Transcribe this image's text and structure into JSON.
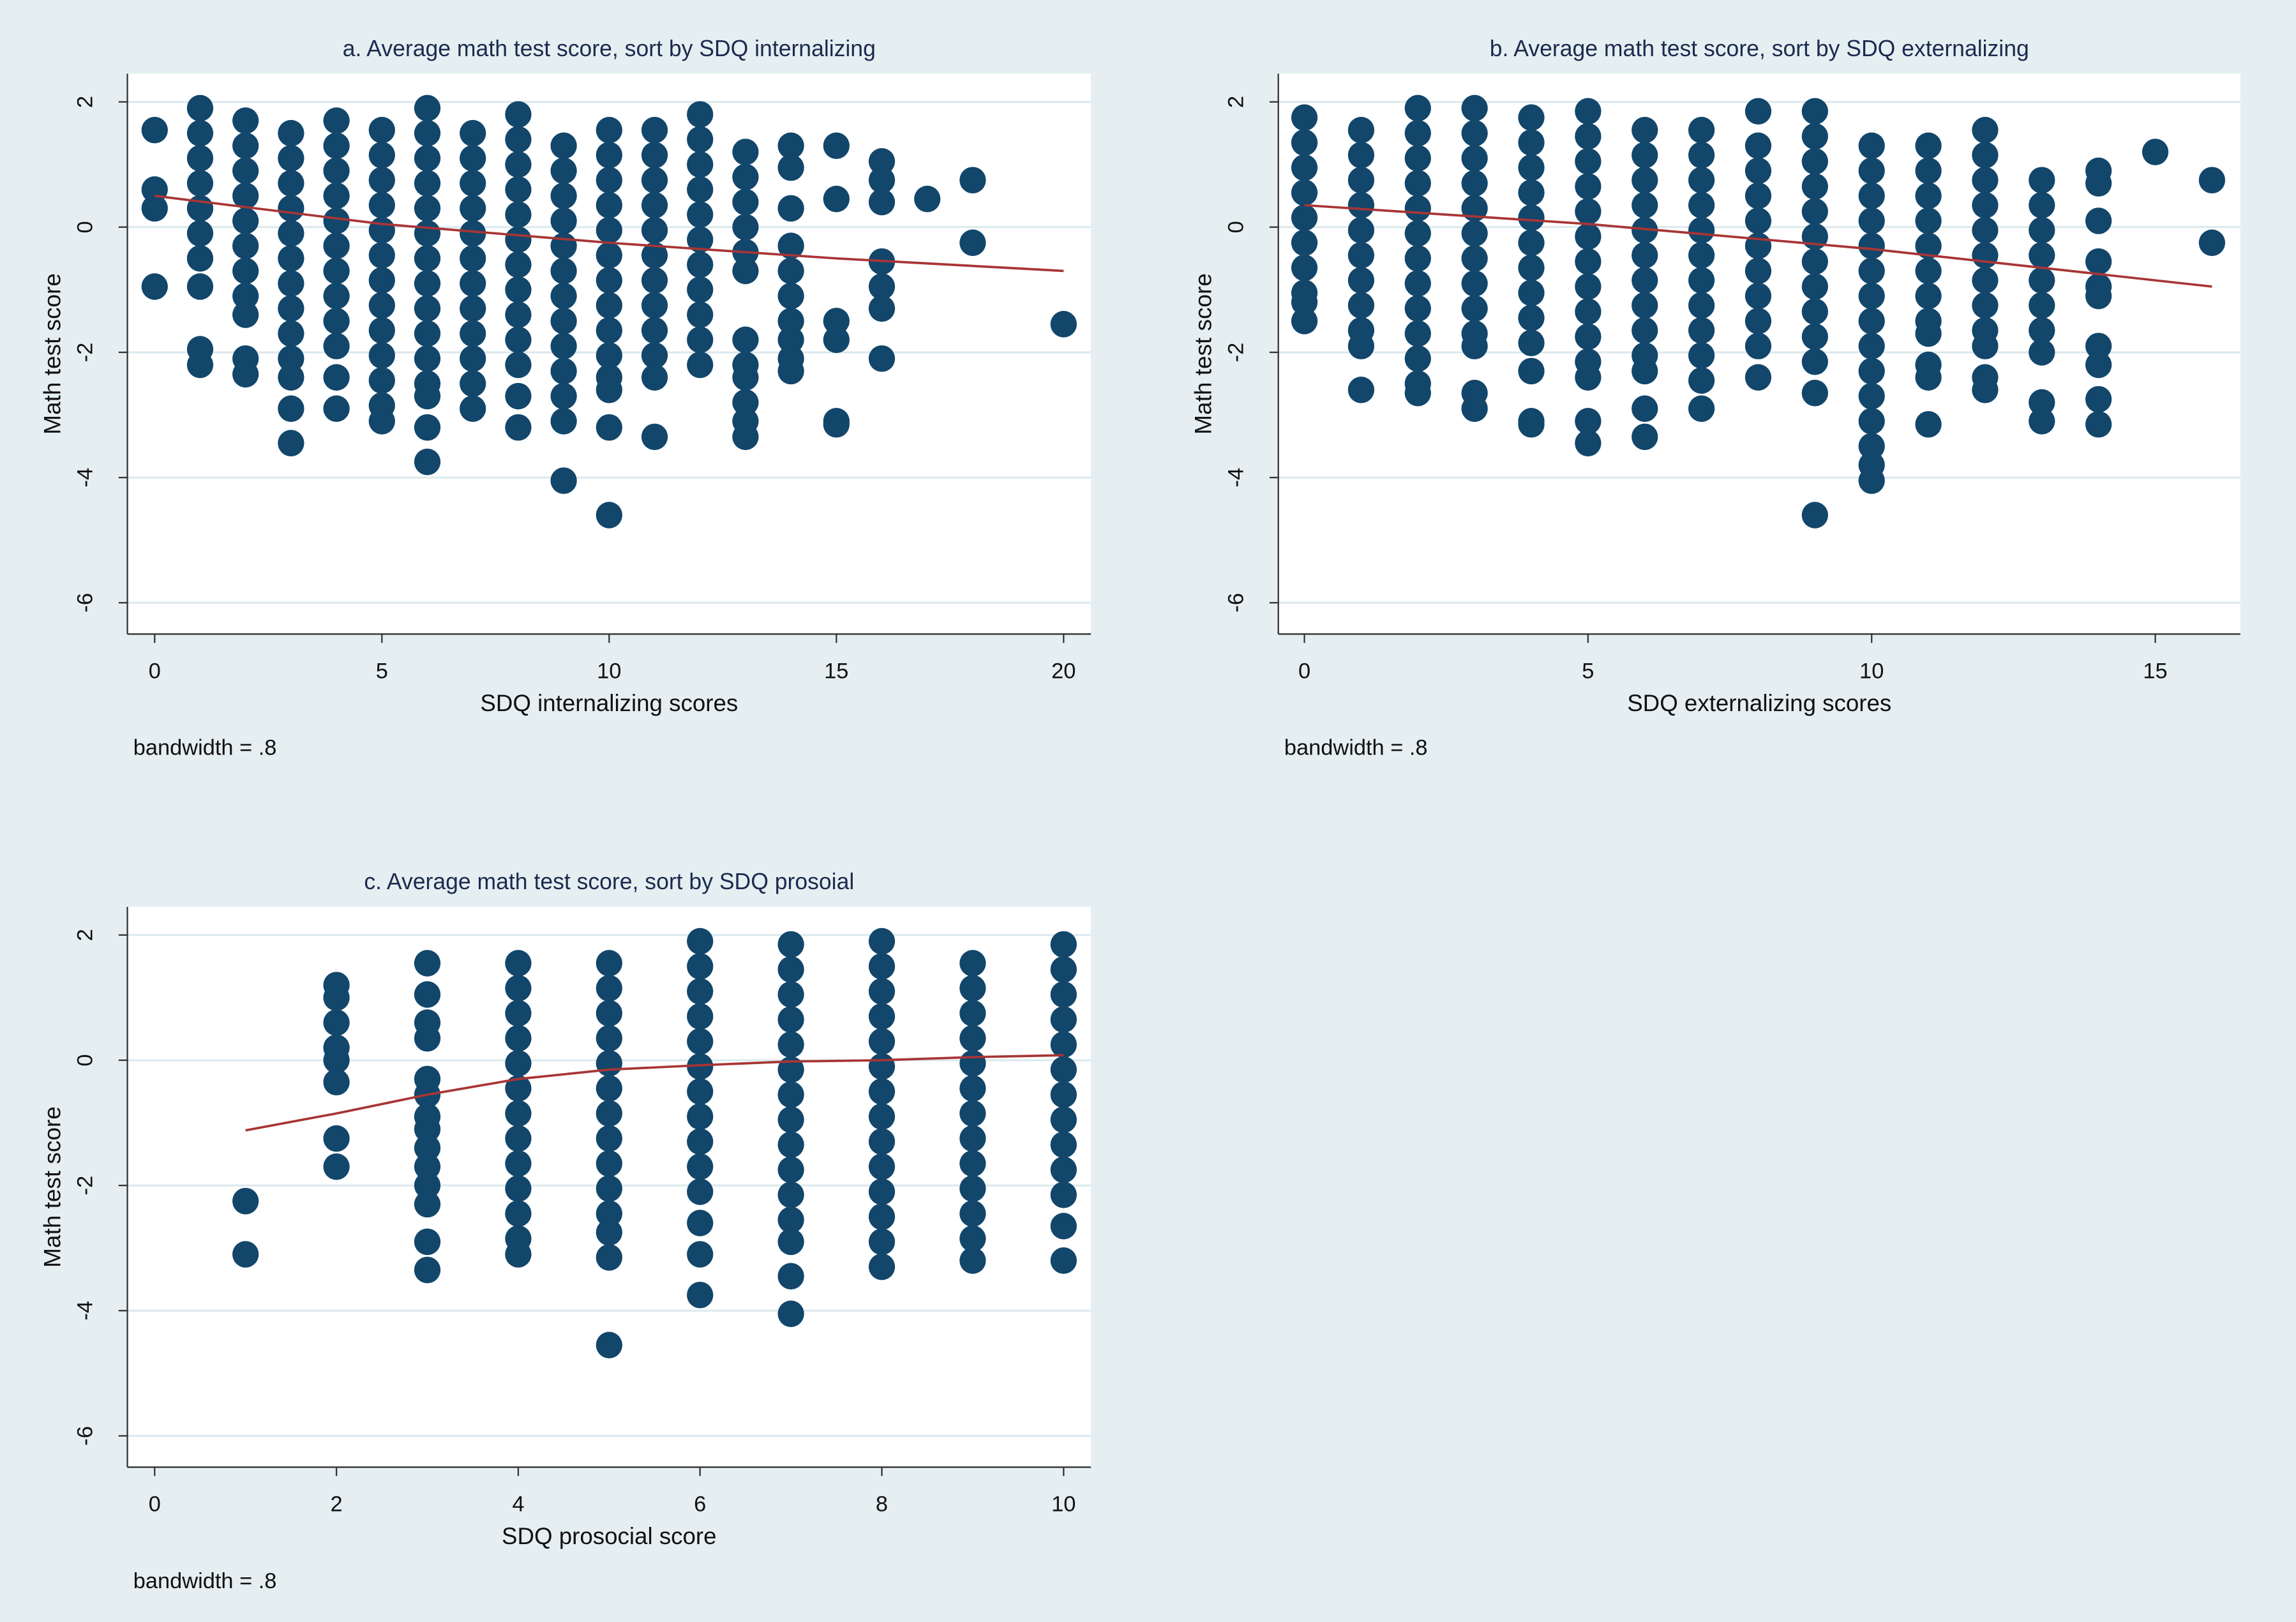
{
  "chart_data": [
    {
      "type": "scatter",
      "title": "a. Average math test score, sort by SDQ internalizing",
      "x_label": "SDQ internalizing scores",
      "y_label": "Math test score",
      "note": "bandwidth = .8",
      "color": "#12466b",
      "x": [
        0,
        0,
        0,
        0,
        1,
        1,
        1,
        1,
        1,
        1,
        1,
        1,
        1,
        1,
        2,
        2,
        2,
        2,
        2,
        2,
        2,
        2,
        2,
        2,
        2,
        3,
        3,
        3,
        3,
        3,
        3,
        3,
        3,
        3,
        3,
        3,
        3,
        3,
        4,
        4,
        4,
        4,
        4,
        4,
        4,
        4,
        4,
        4,
        4,
        4,
        5,
        5,
        5,
        5,
        5,
        5,
        5,
        5,
        5,
        5,
        5,
        5,
        5,
        6,
        6,
        6,
        6,
        6,
        6,
        6,
        6,
        6,
        6,
        6,
        6,
        6,
        6,
        6,
        7,
        7,
        7,
        7,
        7,
        7,
        7,
        7,
        7,
        7,
        7,
        7,
        8,
        8,
        8,
        8,
        8,
        8,
        8,
        8,
        8,
        8,
        8,
        8,
        8,
        9,
        9,
        9,
        9,
        9,
        9,
        9,
        9,
        9,
        9,
        9,
        9,
        9,
        10,
        10,
        10,
        10,
        10,
        10,
        10,
        10,
        10,
        10,
        10,
        10,
        10,
        10,
        11,
        11,
        11,
        11,
        11,
        11,
        11,
        11,
        11,
        11,
        11,
        11,
        12,
        12,
        12,
        12,
        12,
        12,
        12,
        12,
        12,
        12,
        12,
        13,
        13,
        13,
        13,
        13,
        13,
        13,
        13,
        13,
        13,
        13,
        13,
        14,
        14,
        14,
        14,
        14,
        14,
        14,
        14,
        14,
        14,
        15,
        15,
        15,
        15,
        15,
        15,
        16,
        16,
        16,
        16,
        16,
        16,
        16,
        17,
        18,
        18,
        20
      ],
      "values": [
        1.55,
        0.6,
        0.3,
        -0.95,
        1.9,
        1.5,
        1.1,
        0.7,
        0.3,
        -0.1,
        -0.5,
        -0.95,
        -1.95,
        -2.2,
        1.7,
        1.3,
        0.9,
        0.5,
        0.1,
        -0.3,
        -0.7,
        -1.1,
        -1.4,
        -2.1,
        -2.35,
        1.5,
        1.1,
        0.7,
        0.3,
        -0.1,
        -0.5,
        -0.9,
        -1.3,
        -1.7,
        -2.1,
        -2.4,
        -2.9,
        -3.45,
        1.7,
        1.3,
        0.9,
        0.5,
        0.1,
        -0.3,
        -0.7,
        -1.1,
        -1.5,
        -1.9,
        -2.4,
        -2.9,
        1.55,
        1.15,
        0.75,
        0.35,
        -0.05,
        -0.45,
        -0.85,
        -1.25,
        -1.65,
        -2.05,
        -2.45,
        -2.85,
        -3.1,
        1.9,
        1.5,
        1.1,
        0.7,
        0.3,
        -0.1,
        -0.5,
        -0.9,
        -1.3,
        -1.7,
        -2.1,
        -2.5,
        -2.7,
        -3.2,
        -3.75,
        1.5,
        1.1,
        0.7,
        0.3,
        -0.1,
        -0.5,
        -0.9,
        -1.3,
        -1.7,
        -2.1,
        -2.5,
        -2.9,
        1.8,
        1.4,
        1.0,
        0.6,
        0.2,
        -0.2,
        -0.6,
        -1.0,
        -1.4,
        -1.8,
        -2.2,
        -2.7,
        -3.2,
        1.3,
        0.9,
        0.5,
        0.1,
        -0.3,
        -0.7,
        -1.1,
        -1.5,
        -1.9,
        -2.3,
        -2.7,
        -3.1,
        -4.05,
        1.55,
        1.15,
        0.75,
        0.35,
        -0.05,
        -0.45,
        -0.85,
        -1.25,
        -1.65,
        -2.05,
        -2.4,
        -2.6,
        -3.2,
        -4.6,
        1.55,
        1.15,
        0.75,
        0.35,
        -0.05,
        -0.45,
        -0.85,
        -1.25,
        -1.65,
        -2.05,
        -2.4,
        -3.35,
        1.8,
        1.4,
        1.0,
        0.6,
        0.2,
        -0.2,
        -0.6,
        -1.0,
        -1.4,
        -1.8,
        -2.2,
        1.2,
        0.8,
        0.4,
        0,
        -0.4,
        -0.7,
        -1.8,
        -2.2,
        -2.4,
        -2.8,
        -3.1,
        -3.35,
        1.3,
        0.95,
        0.3,
        -0.3,
        -0.7,
        -1.1,
        -1.5,
        -1.8,
        -2.1,
        -2.3,
        1.3,
        0.45,
        -1.5,
        -1.8,
        -3.1,
        -3.15,
        1.05,
        0.75,
        0.4,
        -0.55,
        -0.95,
        -1.3,
        -2.1,
        0.45,
        0.75,
        -0.25,
        -1.55
      ],
      "lowess": {
        "color": "#a83535",
        "x": [
          0,
          5,
          10,
          15,
          20
        ],
        "values": [
          0.5,
          0.05,
          -0.25,
          -0.5,
          -0.7
        ]
      },
      "xlim": [
        -0.6,
        20.6
      ],
      "xticks": [
        0,
        5,
        10,
        15,
        20
      ],
      "ylim": [
        -6.5,
        2.45
      ],
      "yticks": [
        2,
        0,
        -2,
        -4,
        -6
      ],
      "grid": true
    },
    {
      "type": "scatter",
      "title": "b. Average math test score, sort by SDQ externalizing",
      "x_label": "SDQ externalizing scores",
      "y_label": "Math test score",
      "note": "bandwidth = .8",
      "color": "#12466b",
      "x": [
        0,
        0,
        0,
        0,
        0,
        0,
        0,
        0,
        0,
        0,
        1,
        1,
        1,
        1,
        1,
        1,
        1,
        1,
        1,
        1,
        1,
        2,
        2,
        2,
        2,
        2,
        2,
        2,
        2,
        2,
        2,
        2,
        2,
        2,
        3,
        3,
        3,
        3,
        3,
        3,
        3,
        3,
        3,
        3,
        3,
        3,
        3,
        4,
        4,
        4,
        4,
        4,
        4,
        4,
        4,
        4,
        4,
        4,
        4,
        4,
        5,
        5,
        5,
        5,
        5,
        5,
        5,
        5,
        5,
        5,
        5,
        5,
        5,
        5,
        6,
        6,
        6,
        6,
        6,
        6,
        6,
        6,
        6,
        6,
        6,
        6,
        6,
        7,
        7,
        7,
        7,
        7,
        7,
        7,
        7,
        7,
        7,
        7,
        7,
        8,
        8,
        8,
        8,
        8,
        8,
        8,
        8,
        8,
        8,
        8,
        9,
        9,
        9,
        9,
        9,
        9,
        9,
        9,
        9,
        9,
        9,
        9,
        9,
        10,
        10,
        10,
        10,
        10,
        10,
        10,
        10,
        10,
        10,
        10,
        10,
        10,
        10,
        10,
        11,
        11,
        11,
        11,
        11,
        11,
        11,
        11,
        11,
        11,
        11,
        11,
        12,
        12,
        12,
        12,
        12,
        12,
        12,
        12,
        12,
        12,
        12,
        12,
        13,
        13,
        13,
        13,
        13,
        13,
        13,
        13,
        13,
        13,
        14,
        14,
        14,
        14,
        14,
        14,
        14,
        14,
        14,
        14,
        15,
        16,
        16
      ],
      "values": [
        1.75,
        1.35,
        0.95,
        0.55,
        0.15,
        -0.25,
        -0.65,
        -1.05,
        -1.2,
        -1.5,
        1.55,
        1.15,
        0.75,
        0.35,
        -0.05,
        -0.45,
        -0.85,
        -1.25,
        -1.65,
        -1.9,
        -2.6,
        1.9,
        1.5,
        1.1,
        0.7,
        0.3,
        -0.1,
        -0.5,
        -0.9,
        -1.3,
        -1.7,
        -2.1,
        -2.5,
        -2.65,
        1.9,
        1.5,
        1.1,
        0.7,
        0.3,
        -0.1,
        -0.5,
        -0.9,
        -1.3,
        -1.7,
        -1.9,
        -2.65,
        -2.9,
        1.75,
        1.35,
        0.95,
        0.55,
        0.15,
        -0.25,
        -0.65,
        -1.05,
        -1.45,
        -1.85,
        -2.3,
        -3.1,
        -3.15,
        1.85,
        1.45,
        1.05,
        0.65,
        0.25,
        -0.15,
        -0.55,
        -0.95,
        -1.35,
        -1.75,
        -2.15,
        -2.4,
        -3.1,
        -3.45,
        1.55,
        1.15,
        0.75,
        0.35,
        -0.05,
        -0.45,
        -0.85,
        -1.25,
        -1.65,
        -2.05,
        -2.3,
        -2.9,
        -3.35,
        1.55,
        1.15,
        0.75,
        0.35,
        -0.05,
        -0.45,
        -0.85,
        -1.25,
        -1.65,
        -2.05,
        -2.45,
        -2.9,
        1.85,
        1.3,
        0.9,
        0.5,
        0.1,
        -0.3,
        -0.7,
        -1.1,
        -1.5,
        -1.9,
        -2.4,
        1.85,
        1.45,
        1.05,
        0.65,
        0.25,
        -0.15,
        -0.55,
        -0.95,
        -1.35,
        -1.75,
        -2.15,
        -2.65,
        -4.6,
        1.3,
        0.9,
        0.5,
        0.1,
        -0.3,
        -0.7,
        -1.1,
        -1.5,
        -1.9,
        -2.3,
        -2.7,
        -3.1,
        -3.5,
        -3.8,
        -4.05,
        1.3,
        0.9,
        0.5,
        0.1,
        -0.3,
        -0.7,
        -1.1,
        -1.5,
        -1.7,
        -2.2,
        -2.4,
        -3.15,
        1.55,
        1.15,
        0.75,
        0.35,
        -0.05,
        -0.45,
        -0.85,
        -1.25,
        -1.65,
        -1.9,
        -2.4,
        -2.6,
        0.75,
        0.35,
        -0.05,
        -0.45,
        -0.85,
        -1.25,
        -1.65,
        -2.0,
        -2.8,
        -3.1,
        0.9,
        0.7,
        0.1,
        -0.55,
        -0.95,
        -1.1,
        -1.9,
        -2.2,
        -2.75,
        -3.15,
        1.2,
        0.75,
        -0.25
      ],
      "lowess": {
        "color": "#a83535",
        "x": [
          0,
          5,
          10,
          16
        ],
        "values": [
          0.35,
          0.05,
          -0.35,
          -0.95
        ]
      },
      "xlim": [
        -0.46,
        16.5
      ],
      "xticks": [
        0,
        5,
        10,
        15
      ],
      "ylim": [
        -6.5,
        2.45
      ],
      "yticks": [
        2,
        0,
        -2,
        -4,
        -6
      ],
      "grid": true
    },
    {
      "type": "scatter",
      "title": "c. Average math test score, sort by SDQ prosoial",
      "x_label": "SDQ prosocial score",
      "y_label": "Math test score",
      "note": "bandwidth = .8",
      "color": "#12466b",
      "x": [
        1,
        1,
        2,
        2,
        2,
        2,
        2,
        2,
        2,
        2,
        3,
        3,
        3,
        3,
        3,
        3,
        3,
        3,
        3,
        3,
        3,
        3,
        3,
        3,
        4,
        4,
        4,
        4,
        4,
        4,
        4,
        4,
        4,
        4,
        4,
        4,
        4,
        5,
        5,
        5,
        5,
        5,
        5,
        5,
        5,
        5,
        5,
        5,
        5,
        5,
        5,
        6,
        6,
        6,
        6,
        6,
        6,
        6,
        6,
        6,
        6,
        6,
        6,
        6,
        6,
        7,
        7,
        7,
        7,
        7,
        7,
        7,
        7,
        7,
        7,
        7,
        7,
        7,
        7,
        7,
        8,
        8,
        8,
        8,
        8,
        8,
        8,
        8,
        8,
        8,
        8,
        8,
        8,
        8,
        9,
        9,
        9,
        9,
        9,
        9,
        9,
        9,
        9,
        9,
        9,
        9,
        9,
        10,
        10,
        10,
        10,
        10,
        10,
        10,
        10,
        10,
        10,
        10,
        10,
        10
      ],
      "values": [
        -2.25,
        -3.1,
        1.2,
        1.0,
        0.6,
        0.2,
        0,
        -0.35,
        -1.25,
        -1.7,
        1.55,
        1.05,
        0.6,
        0.35,
        -0.3,
        -0.55,
        -0.9,
        -1.1,
        -1.4,
        -1.7,
        -2.0,
        -2.3,
        -2.9,
        -3.35,
        1.55,
        1.15,
        0.75,
        0.35,
        -0.05,
        -0.45,
        -0.85,
        -1.25,
        -1.65,
        -2.05,
        -2.45,
        -2.85,
        -3.1,
        1.55,
        1.15,
        0.75,
        0.35,
        -0.05,
        -0.45,
        -0.85,
        -1.25,
        -1.65,
        -2.05,
        -2.45,
        -2.75,
        -3.15,
        -4.55,
        1.9,
        1.5,
        1.1,
        0.7,
        0.3,
        -0.1,
        -0.5,
        -0.9,
        -1.3,
        -1.7,
        -2.1,
        -2.6,
        -3.1,
        -3.75,
        1.85,
        1.45,
        1.05,
        0.65,
        0.25,
        -0.15,
        -0.55,
        -0.95,
        -1.35,
        -1.75,
        -2.15,
        -2.55,
        -2.9,
        -3.45,
        -4.05,
        1.9,
        1.5,
        1.1,
        0.7,
        0.3,
        -0.1,
        -0.5,
        -0.9,
        -1.3,
        -1.7,
        -2.1,
        -2.5,
        -2.9,
        -3.3,
        1.55,
        1.15,
        0.75,
        0.35,
        -0.05,
        -0.45,
        -0.85,
        -1.25,
        -1.65,
        -2.05,
        -2.45,
        -2.85,
        -3.2,
        1.85,
        1.45,
        1.05,
        0.65,
        0.25,
        -0.15,
        -0.55,
        -0.95,
        -1.35,
        -1.75,
        -2.15,
        -2.65,
        -3.2
      ],
      "lowess": {
        "color": "#a83535",
        "x": [
          1,
          2,
          3,
          4,
          5,
          6,
          7,
          8,
          9,
          10
        ],
        "values": [
          -1.12,
          -0.85,
          -0.55,
          -0.3,
          -0.15,
          -0.08,
          -0.02,
          0,
          0.05,
          0.08
        ]
      },
      "xlim": [
        -0.3,
        10.3
      ],
      "xticks": [
        0,
        2,
        4,
        6,
        8,
        10
      ],
      "ylim": [
        -6.5,
        2.45
      ],
      "yticks": [
        2,
        0,
        -2,
        -4,
        -6
      ],
      "grid": true
    }
  ]
}
